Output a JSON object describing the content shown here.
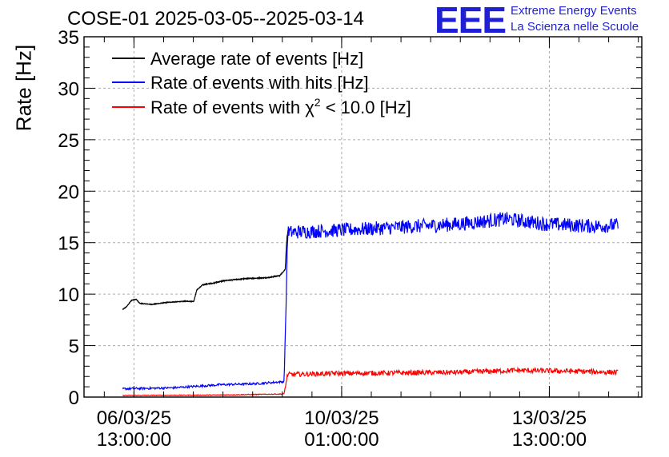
{
  "title": "COSE-01 2025-03-05--2025-03-14",
  "logo": {
    "text": "EEE",
    "line1": "Extreme Energy Events",
    "line2": "La Scienza nelle Scuole",
    "color": "#1f1fd6"
  },
  "chart_data": {
    "type": "line",
    "ylabel": "Rate [Hz]",
    "xlabel": "",
    "ylim": [
      0,
      35
    ],
    "yticks": [
      0,
      5,
      10,
      15,
      20,
      25,
      30,
      35
    ],
    "x_unit": "days since 2025-03-05 00:00",
    "xlim": [
      0.7,
      10.1
    ],
    "xticks": [
      {
        "x": 1.5417,
        "line1": "06/03/25",
        "line2": "13:00:00"
      },
      {
        "x": 5.0417,
        "line1": "10/03/25",
        "line2": "01:00:00"
      },
      {
        "x": 8.5417,
        "line1": "13/03/25",
        "line2": "13:00:00"
      }
    ],
    "grid": true,
    "legend_position": "top-left",
    "series": [
      {
        "name": "Average rate of events [Hz]",
        "color": "#000000",
        "noise": 0.05,
        "points": [
          [
            1.35,
            8.5
          ],
          [
            1.42,
            8.8
          ],
          [
            1.5,
            9.4
          ],
          [
            1.58,
            9.5
          ],
          [
            1.64,
            9.1
          ],
          [
            1.85,
            9.0
          ],
          [
            2.1,
            9.2
          ],
          [
            2.4,
            9.3
          ],
          [
            2.55,
            9.3
          ],
          [
            2.6,
            10.4
          ],
          [
            2.7,
            10.9
          ],
          [
            2.9,
            11.1
          ],
          [
            3.05,
            11.3
          ],
          [
            3.4,
            11.5
          ],
          [
            3.8,
            11.6
          ],
          [
            4.0,
            11.8
          ],
          [
            4.09,
            12.4
          ],
          [
            4.12,
            15.5
          ],
          [
            4.14,
            16.2
          ]
        ]
      },
      {
        "name": "Rate of events with hits [Hz]",
        "color": "#0000ff",
        "noise": 0.7,
        "points": [
          [
            1.35,
            0.8
          ],
          [
            2.2,
            0.9
          ],
          [
            3.0,
            1.2
          ],
          [
            3.6,
            1.3
          ],
          [
            4.07,
            1.5
          ],
          [
            4.1,
            7.5
          ],
          [
            4.13,
            16.0
          ],
          [
            5.0,
            16.2
          ],
          [
            6.0,
            16.5
          ],
          [
            7.0,
            16.8
          ],
          [
            7.8,
            17.3
          ],
          [
            8.5,
            16.8
          ],
          [
            9.3,
            16.6
          ],
          [
            9.7,
            16.7
          ]
        ]
      },
      {
        "name": "Rate of events with χ² < 10.0 [Hz]",
        "legend_pre": "Rate of events with ",
        "legend_chi": "χ",
        "legend_sup": "2",
        "legend_post": " < 10.0 [Hz]",
        "color": "#ff0000",
        "noise": 0.25,
        "points": [
          [
            1.35,
            0.15
          ],
          [
            3.0,
            0.2
          ],
          [
            4.07,
            0.3
          ],
          [
            4.1,
            1.2
          ],
          [
            4.13,
            2.2
          ],
          [
            5.0,
            2.3
          ],
          [
            6.0,
            2.35
          ],
          [
            7.0,
            2.4
          ],
          [
            8.0,
            2.6
          ],
          [
            9.0,
            2.5
          ],
          [
            9.7,
            2.4
          ]
        ]
      }
    ]
  }
}
